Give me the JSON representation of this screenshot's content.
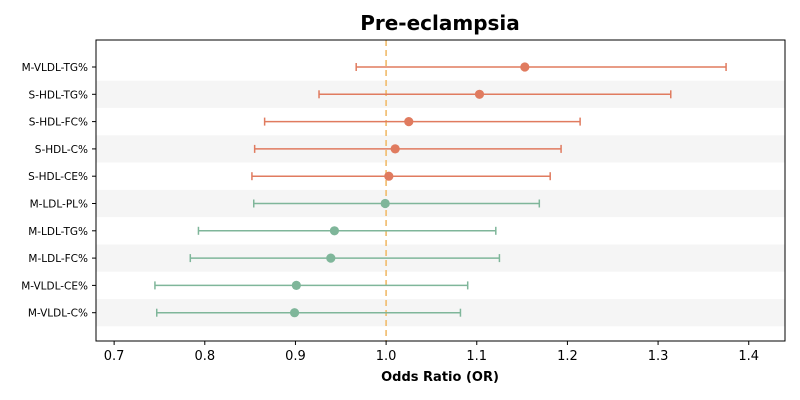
{
  "chart_data": {
    "type": "scatter",
    "title": "Pre-eclampsia",
    "xlabel": "Odds Ratio (OR)",
    "ylabel": "",
    "xlim": [
      0.68,
      1.44
    ],
    "xticks": [
      0.7,
      0.8,
      0.9,
      1.0,
      1.1,
      1.2,
      1.3,
      1.4
    ],
    "xtick_labels": [
      "0.7",
      "0.8",
      "0.9",
      "1.0",
      "1.1",
      "1.2",
      "1.3",
      "1.4"
    ],
    "reference_line": 1.0,
    "grid": false,
    "colors": {
      "risk": "#e07b5f",
      "protective": "#7fb69a",
      "reference": "#f2c27a",
      "band": "#f5f5f5"
    },
    "points": [
      {
        "label": "M-VLDL-TG%",
        "or": 1.153,
        "lower": 0.967,
        "upper": 1.375,
        "group": "risk"
      },
      {
        "label": "S-HDL-TG%",
        "or": 1.103,
        "lower": 0.926,
        "upper": 1.314,
        "group": "risk"
      },
      {
        "label": "S-HDL-FC%",
        "or": 1.025,
        "lower": 0.866,
        "upper": 1.214,
        "group": "risk"
      },
      {
        "label": "S-HDL-C%",
        "or": 1.01,
        "lower": 0.855,
        "upper": 1.193,
        "group": "risk"
      },
      {
        "label": "S-HDL-CE%",
        "or": 1.003,
        "lower": 0.852,
        "upper": 1.181,
        "group": "risk"
      },
      {
        "label": "M-LDL-PL%",
        "or": 0.999,
        "lower": 0.854,
        "upper": 1.169,
        "group": "protective"
      },
      {
        "label": "M-LDL-TG%",
        "or": 0.943,
        "lower": 0.793,
        "upper": 1.121,
        "group": "protective"
      },
      {
        "label": "M-LDL-FC%",
        "or": 0.939,
        "lower": 0.784,
        "upper": 1.125,
        "group": "protective"
      },
      {
        "label": "M-VLDL-CE%",
        "or": 0.901,
        "lower": 0.745,
        "upper": 1.09,
        "group": "protective"
      },
      {
        "label": "M-VLDL-C%",
        "or": 0.899,
        "lower": 0.747,
        "upper": 1.082,
        "group": "protective"
      }
    ]
  }
}
